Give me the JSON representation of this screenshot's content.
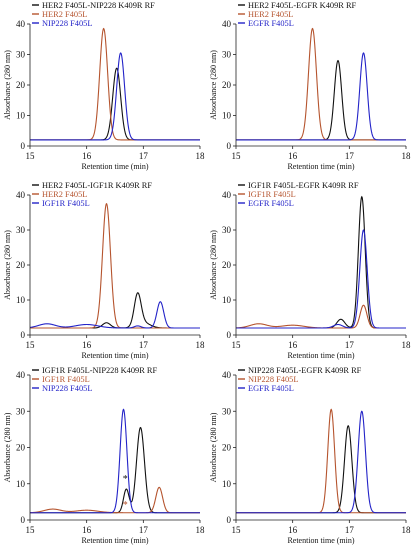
{
  "figure": {
    "colors": {
      "black": "#111111",
      "brown": "#b5542e",
      "blue": "#2323c8",
      "axis": "#222222"
    }
  },
  "chart_data": [
    {
      "type": "line",
      "xlabel": "Retention time (min)",
      "ylabel": "Absorbance (280 nm)",
      "xlim": [
        15,
        18
      ],
      "ylim": [
        0,
        40
      ],
      "xticks": [
        15,
        16,
        17,
        18
      ],
      "yticks": [
        0,
        10,
        20,
        30,
        40
      ],
      "grid": false,
      "legend_position": "top-left",
      "baseline": 2,
      "series": [
        {
          "name": "HER2 F405L-NIP228 K409R RF",
          "color": "#111111",
          "peaks": [
            [
              16.53,
              23.5,
              0.07
            ]
          ]
        },
        {
          "name": "HER2 F405L",
          "color": "#b5542e",
          "peaks": [
            [
              16.3,
              36.5,
              0.07
            ]
          ]
        },
        {
          "name": "NIP228 F405L",
          "color": "#2323c8",
          "peaks": [
            [
              16.6,
              28.5,
              0.07
            ]
          ]
        }
      ]
    },
    {
      "type": "line",
      "xlabel": "Retention time (min)",
      "ylabel": "Absorbance (280 nm)",
      "xlim": [
        15,
        18
      ],
      "ylim": [
        0,
        40
      ],
      "xticks": [
        15,
        16,
        17,
        18
      ],
      "yticks": [
        0,
        10,
        20,
        30,
        40
      ],
      "grid": false,
      "legend_position": "top-left",
      "baseline": 2,
      "series": [
        {
          "name": "HER2 F405L-EGFR K409R RF",
          "color": "#111111",
          "peaks": [
            [
              16.8,
              26,
              0.065
            ]
          ]
        },
        {
          "name": "HER2 F405L",
          "color": "#b5542e",
          "peaks": [
            [
              16.35,
              36.5,
              0.07
            ]
          ]
        },
        {
          "name": "EGFR F405L",
          "color": "#2323c8",
          "peaks": [
            [
              17.25,
              28.5,
              0.065
            ]
          ]
        }
      ]
    },
    {
      "type": "line",
      "xlabel": "Retention time (min)",
      "ylabel": "Absorbance (280 nm)",
      "xlim": [
        15,
        18
      ],
      "ylim": [
        0,
        40
      ],
      "xticks": [
        15,
        16,
        17,
        18
      ],
      "yticks": [
        0,
        10,
        20,
        30,
        40
      ],
      "grid": false,
      "legend_position": "top-left",
      "baseline": 2,
      "series": [
        {
          "name": "HER2 F405L-IGF1R K409R RF",
          "color": "#111111",
          "peaks": [
            [
              16.35,
              1.5,
              0.07
            ],
            [
              16.9,
              9,
              0.06
            ],
            [
              17.0,
              1.5,
              0.12
            ]
          ]
        },
        {
          "name": "HER2 F405L",
          "color": "#b5542e",
          "peaks": [
            [
              16.35,
              35.5,
              0.07
            ]
          ]
        },
        {
          "name": "IGF1R F405L",
          "color": "#2323c8",
          "peaks": [
            [
              15.3,
              1.2,
              0.15
            ],
            [
              16.0,
              1.0,
              0.2
            ],
            [
              16.9,
              0.6,
              0.06
            ],
            [
              17.3,
              7.5,
              0.06
            ]
          ]
        }
      ]
    },
    {
      "type": "line",
      "xlabel": "Retention time (min)",
      "ylabel": "Absorbance (280 nm)",
      "xlim": [
        15,
        18
      ],
      "ylim": [
        0,
        40
      ],
      "xticks": [
        15,
        16,
        17,
        18
      ],
      "yticks": [
        0,
        10,
        20,
        30,
        40
      ],
      "grid": false,
      "legend_position": "top-left",
      "baseline": 2,
      "series": [
        {
          "name": "IGF1R F405L-EGFR K409R RF",
          "color": "#111111",
          "peaks": [
            [
              16.85,
              2.5,
              0.07
            ],
            [
              17.22,
              37.5,
              0.06
            ]
          ]
        },
        {
          "name": "IGF1R F405L",
          "color": "#b5542e",
          "peaks": [
            [
              15.4,
              1.2,
              0.15
            ],
            [
              16.0,
              0.8,
              0.2
            ],
            [
              17.25,
              6.5,
              0.06
            ]
          ]
        },
        {
          "name": "EGFR F405L",
          "color": "#2323c8",
          "peaks": [
            [
              16.8,
              1.0,
              0.08
            ],
            [
              17.25,
              28,
              0.065
            ]
          ]
        }
      ]
    },
    {
      "type": "line",
      "xlabel": "Retention time (min)",
      "ylabel": "Absorbance (280 nm)",
      "xlim": [
        15,
        18
      ],
      "ylim": [
        0,
        40
      ],
      "xticks": [
        15,
        16,
        17,
        18
      ],
      "yticks": [
        0,
        10,
        20,
        30,
        40
      ],
      "grid": false,
      "legend_position": "top-left",
      "baseline": 2,
      "annotations": [
        {
          "text": "*",
          "x": 16.68,
          "y": 10.5,
          "color": "#111111"
        },
        {
          "text": "*",
          "x": 16.68,
          "y": 3.3,
          "color": "#b5542e"
        }
      ],
      "series": [
        {
          "name": "IGF1R F405L-NIP228 K409R RF",
          "color": "#111111",
          "peaks": [
            [
              16.7,
              6.5,
              0.05
            ],
            [
              16.95,
              23.5,
              0.07
            ]
          ]
        },
        {
          "name": "IGF1R F405L",
          "color": "#b5542e",
          "peaks": [
            [
              15.4,
              1.0,
              0.15
            ],
            [
              16.0,
              0.7,
              0.2
            ],
            [
              17.28,
              7,
              0.06
            ]
          ]
        },
        {
          "name": "NIP228 F405L",
          "color": "#2323c8",
          "peaks": [
            [
              16.65,
              28.5,
              0.06
            ]
          ]
        }
      ]
    },
    {
      "type": "line",
      "xlabel": "Retention time (min)",
      "ylabel": "Absorbance (280 nm)",
      "xlim": [
        15,
        18
      ],
      "ylim": [
        0,
        40
      ],
      "xticks": [
        15,
        16,
        17,
        18
      ],
      "yticks": [
        0,
        10,
        20,
        30,
        40
      ],
      "grid": false,
      "legend_position": "top-left",
      "baseline": 2,
      "series": [
        {
          "name": "NIP228 F405L-EGFR K409R RF",
          "color": "#111111",
          "peaks": [
            [
              16.98,
              24,
              0.065
            ]
          ]
        },
        {
          "name": "NIP228 F405L",
          "color": "#b5542e",
          "peaks": [
            [
              16.68,
              28.5,
              0.06
            ]
          ]
        },
        {
          "name": "EGFR F405L",
          "color": "#2323c8",
          "peaks": [
            [
              17.22,
              28,
              0.065
            ]
          ]
        }
      ]
    }
  ]
}
